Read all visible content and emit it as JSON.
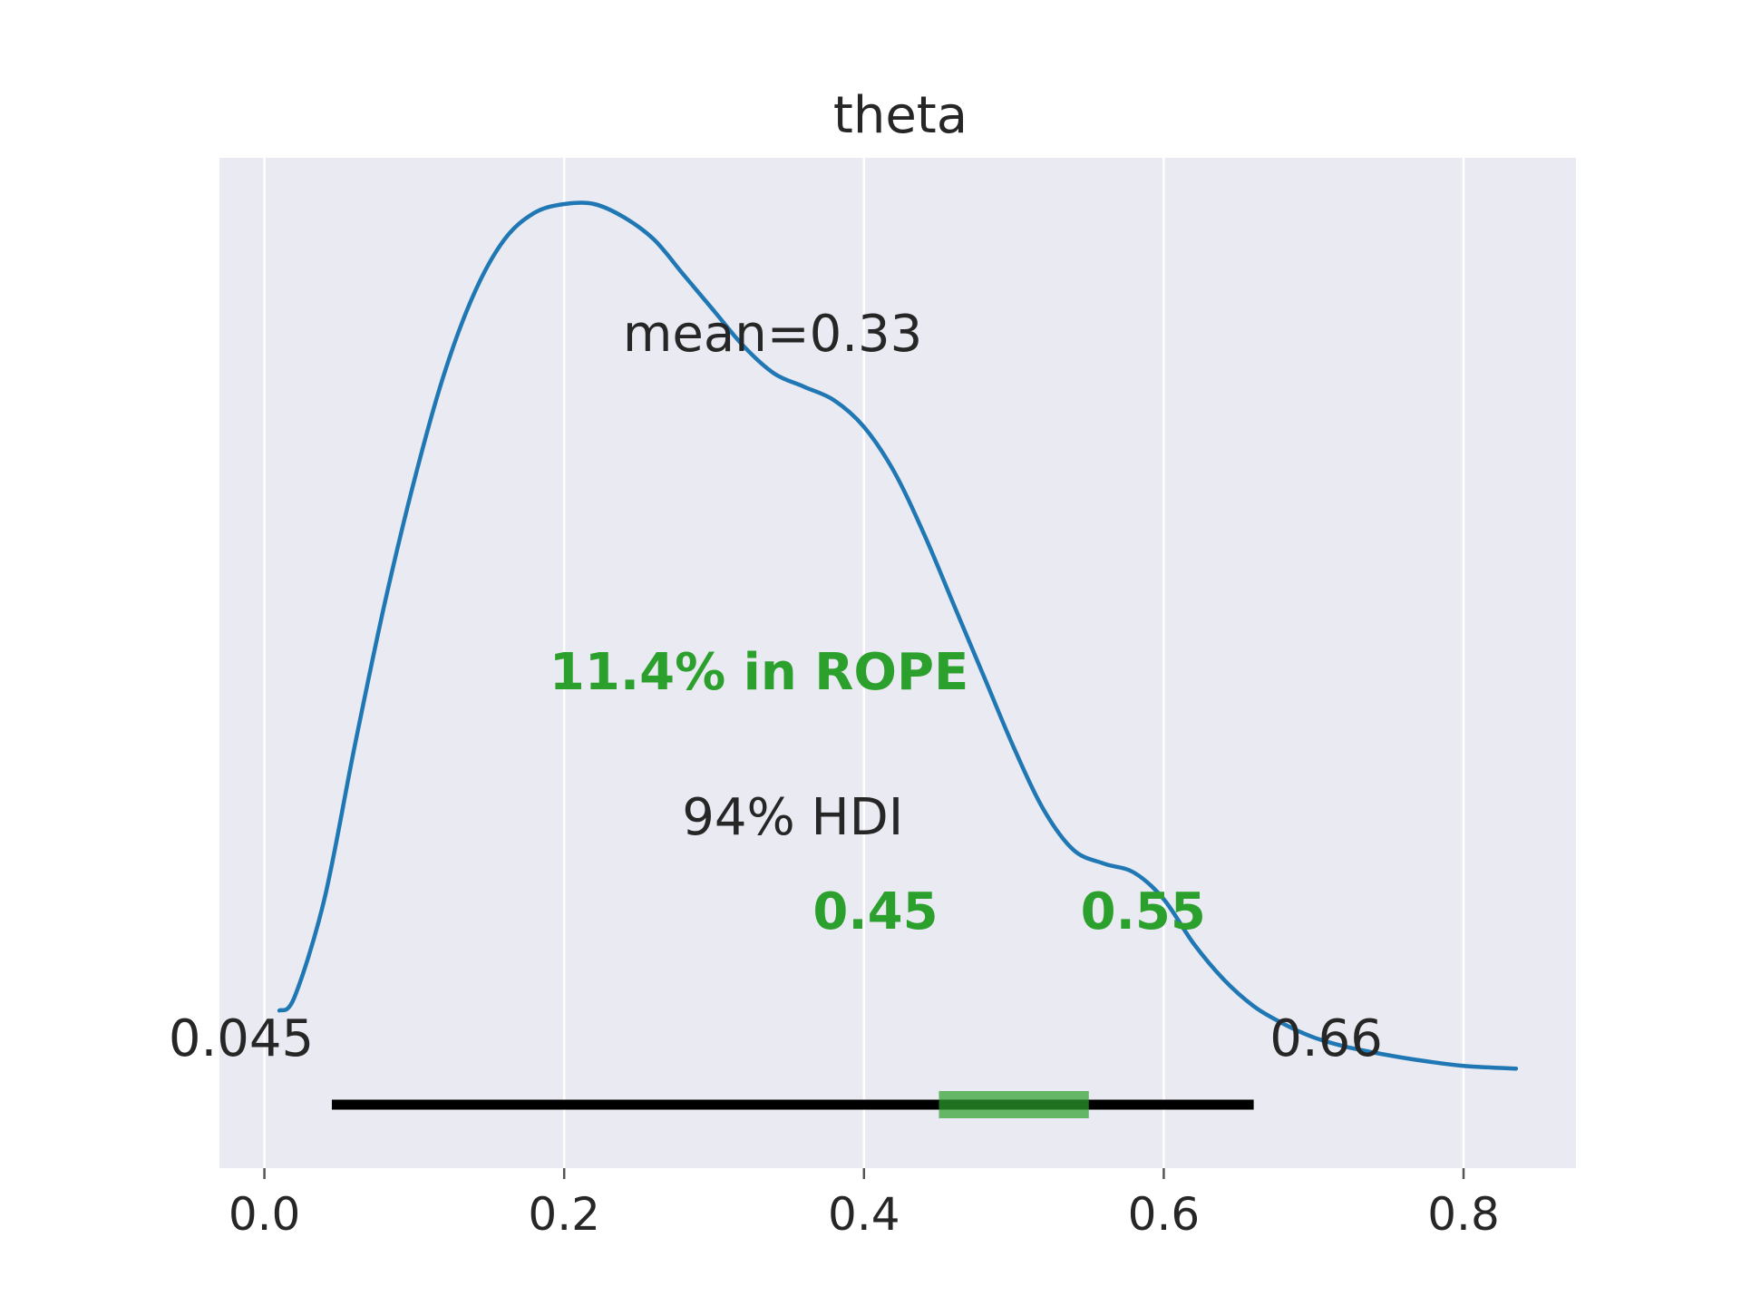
{
  "chart_data": {
    "type": "area",
    "title": "theta",
    "xlabel": "",
    "ylabel": "",
    "xlim": [
      -0.03,
      0.875
    ],
    "ylim": [
      0,
      1
    ],
    "grid": "vertical",
    "background_color": "#eaeaf2",
    "line_color": "#1f77b4",
    "hdi_color": "#000000",
    "rope_color": "#2ca02c",
    "x_ticks": [
      {
        "value": 0.0,
        "label": "0.0"
      },
      {
        "value": 0.2,
        "label": "0.2"
      },
      {
        "value": 0.4,
        "label": "0.4"
      },
      {
        "value": 0.6,
        "label": "0.6"
      },
      {
        "value": 0.8,
        "label": "0.8"
      }
    ],
    "density": {
      "x": [
        0.01,
        0.02,
        0.04,
        0.06,
        0.08,
        0.1,
        0.12,
        0.14,
        0.16,
        0.18,
        0.2,
        0.22,
        0.24,
        0.26,
        0.28,
        0.3,
        0.32,
        0.34,
        0.36,
        0.38,
        0.4,
        0.42,
        0.44,
        0.46,
        0.48,
        0.5,
        0.52,
        0.54,
        0.56,
        0.58,
        0.6,
        0.62,
        0.64,
        0.66,
        0.68,
        0.7,
        0.72,
        0.74,
        0.76,
        0.78,
        0.8,
        0.82,
        0.835
      ],
      "y": [
        0.075,
        0.09,
        0.2,
        0.37,
        0.53,
        0.67,
        0.79,
        0.88,
        0.94,
        0.97,
        0.98,
        0.98,
        0.965,
        0.94,
        0.9,
        0.86,
        0.82,
        0.79,
        0.775,
        0.76,
        0.73,
        0.68,
        0.61,
        0.53,
        0.45,
        0.37,
        0.3,
        0.255,
        0.24,
        0.23,
        0.2,
        0.15,
        0.11,
        0.08,
        0.06,
        0.045,
        0.035,
        0.028,
        0.022,
        0.017,
        0.013,
        0.011,
        0.01
      ]
    },
    "mean_label": "mean=0.33",
    "hdi": {
      "label": "94% HDI",
      "low": 0.045,
      "high": 0.66,
      "low_label": "0.045",
      "high_label": "0.66"
    },
    "rope": {
      "low": 0.45,
      "high": 0.55,
      "low_label": "0.45",
      "high_label": "0.55",
      "label": "11.4% in ROPE"
    }
  }
}
